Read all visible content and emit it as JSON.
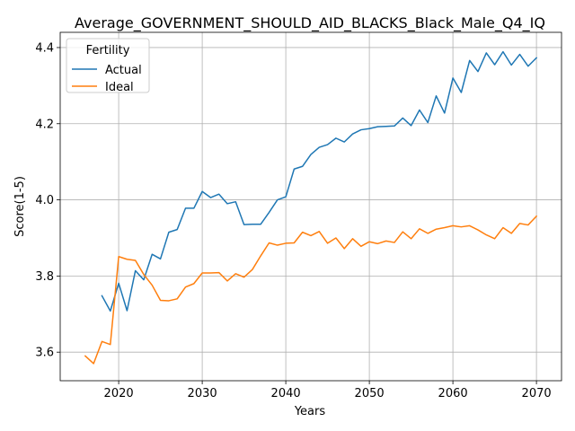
{
  "chart_data": {
    "type": "line",
    "title": "Average_GOVERNMENT_SHOULD_AID_BLACKS_Black_Male_Q4_IQ",
    "xlabel": "Years",
    "ylabel": "Score(1-5)",
    "xlim": [
      2013,
      2073
    ],
    "ylim": [
      3.525,
      4.44
    ],
    "xticks": [
      2020,
      2030,
      2040,
      2050,
      2060,
      2070
    ],
    "yticks": [
      3.6,
      3.8,
      4.0,
      4.2,
      4.4
    ],
    "xtick_labels": [
      "2020",
      "2030",
      "2040",
      "2050",
      "2060",
      "2070"
    ],
    "ytick_labels": [
      "3.6",
      "3.8",
      "4.0",
      "4.2",
      "4.4"
    ],
    "grid": true,
    "legend": {
      "title": "Fertility",
      "placement": "top-left",
      "entries": [
        "Actual",
        "Ideal"
      ]
    },
    "series": [
      {
        "name": "Actual",
        "color": "#1f77b4",
        "x": [
          2018,
          2019,
          2020,
          2021,
          2022,
          2023,
          2024,
          2025,
          2026,
          2027,
          2028,
          2029,
          2030,
          2031,
          2032,
          2033,
          2034,
          2035,
          2036,
          2037,
          2038,
          2039,
          2040,
          2041,
          2042,
          2043,
          2044,
          2045,
          2046,
          2047,
          2048,
          2049,
          2050,
          2051,
          2052,
          2053,
          2054,
          2055,
          2056,
          2057,
          2058,
          2059,
          2060,
          2061,
          2062,
          2063,
          2064,
          2065,
          2066,
          2067,
          2068,
          2069,
          2070
        ],
        "values": [
          3.748,
          3.708,
          3.781,
          3.709,
          3.814,
          3.79,
          3.857,
          3.845,
          3.915,
          3.922,
          3.978,
          3.978,
          4.022,
          4.006,
          4.015,
          3.99,
          3.995,
          3.935,
          3.936,
          3.936,
          3.967,
          4.0,
          4.008,
          4.081,
          4.088,
          4.119,
          4.138,
          4.145,
          4.162,
          4.152,
          4.173,
          4.184,
          4.187,
          4.192,
          4.193,
          4.194,
          4.215,
          4.195,
          4.236,
          4.203,
          4.273,
          4.228,
          4.32,
          4.282,
          4.366,
          4.337,
          4.386,
          4.355,
          4.389,
          4.354,
          4.382,
          4.351,
          4.373
        ]
      },
      {
        "name": "Ideal",
        "color": "#ff7f0e",
        "x": [
          2016,
          2017,
          2018,
          2019,
          2020,
          2021,
          2022,
          2023,
          2024,
          2025,
          2026,
          2027,
          2028,
          2029,
          2030,
          2031,
          2032,
          2033,
          2034,
          2035,
          2036,
          2037,
          2038,
          2039,
          2040,
          2041,
          2042,
          2043,
          2044,
          2045,
          2046,
          2047,
          2048,
          2049,
          2050,
          2051,
          2052,
          2053,
          2054,
          2055,
          2056,
          2057,
          2058,
          2059,
          2060,
          2061,
          2062,
          2063,
          2064,
          2065,
          2066,
          2067,
          2068,
          2069,
          2070
        ],
        "values": [
          3.59,
          3.57,
          3.628,
          3.62,
          3.851,
          3.844,
          3.841,
          3.804,
          3.776,
          3.736,
          3.735,
          3.74,
          3.771,
          3.78,
          3.808,
          3.808,
          3.809,
          3.787,
          3.806,
          3.797,
          3.817,
          3.853,
          3.887,
          3.881,
          3.886,
          3.887,
          3.915,
          3.906,
          3.917,
          3.886,
          3.9,
          3.872,
          3.898,
          3.878,
          3.89,
          3.885,
          3.892,
          3.888,
          3.916,
          3.898,
          3.924,
          3.912,
          3.923,
          3.927,
          3.932,
          3.929,
          3.932,
          3.921,
          3.908,
          3.898,
          3.927,
          3.912,
          3.938,
          3.934,
          3.957
        ]
      }
    ]
  }
}
